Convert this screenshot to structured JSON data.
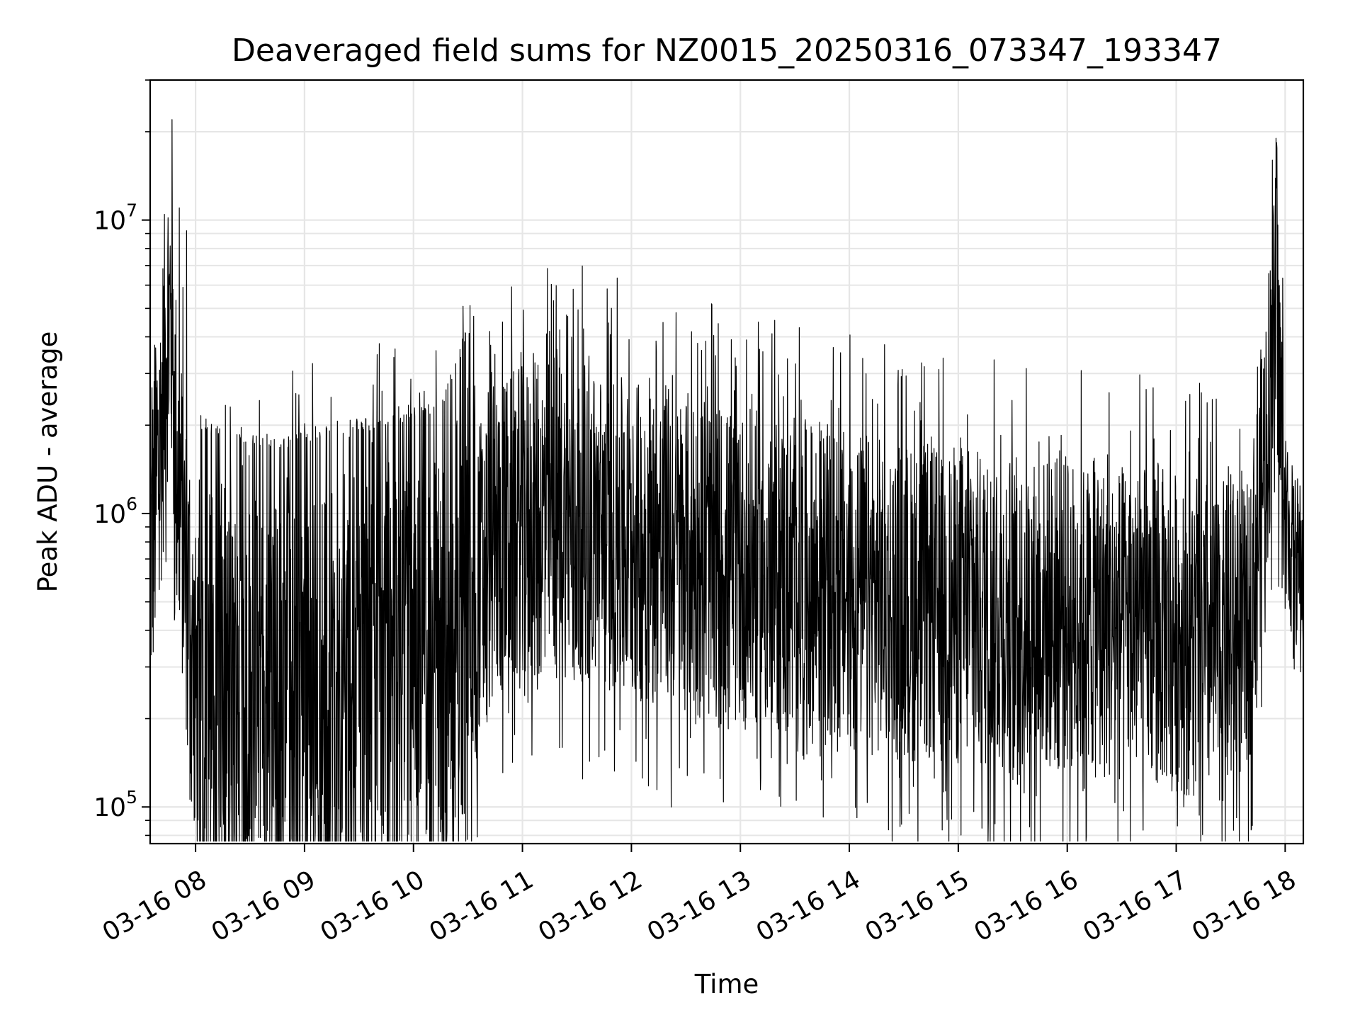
{
  "chart_data": {
    "type": "line",
    "title": "Deaveraged field sums for NZ0015_20250316_073347_193347",
    "xlabel": "Time",
    "ylabel": "Peak ADU - average",
    "yscale": "log",
    "ylim": [
      75000,
      30000000
    ],
    "xlim": [
      "2025-03-16T07:35:00",
      "2025-03-16T18:10:00"
    ],
    "grid": true,
    "line_color": "#000000",
    "x_ticks": [
      "03-16 08",
      "03-16 09",
      "03-16 10",
      "03-16 11",
      "03-16 12",
      "03-16 13",
      "03-16 14",
      "03-16 15",
      "03-16 16",
      "03-16 17",
      "03-16 18"
    ],
    "y_ticks": [
      {
        "base": "10",
        "exp": "5",
        "value": 100000
      },
      {
        "base": "10",
        "exp": "6",
        "value": 1000000
      },
      {
        "base": "10",
        "exp": "7",
        "value": 10000000
      }
    ],
    "series": [
      {
        "x": [
          "2025-03-16T07:35:00",
          "2025-03-16T07:40:00",
          "2025-03-16T07:45:00",
          "2025-03-16T07:50:00",
          "2025-03-16T07:55:00",
          "2025-03-16T08:00:00",
          "2025-03-16T08:10:00",
          "2025-03-16T08:20:00",
          "2025-03-16T08:30:00",
          "2025-03-16T08:40:00",
          "2025-03-16T08:50:00",
          "2025-03-16T09:00:00",
          "2025-03-16T09:15:00",
          "2025-03-16T09:30:00",
          "2025-03-16T09:45:00",
          "2025-03-16T10:00:00",
          "2025-03-16T10:15:00",
          "2025-03-16T10:30:00",
          "2025-03-16T10:45:00",
          "2025-03-16T11:00:00",
          "2025-03-16T11:20:00",
          "2025-03-16T11:40:00",
          "2025-03-16T12:00:00",
          "2025-03-16T12:20:00",
          "2025-03-16T12:40:00",
          "2025-03-16T13:00:00",
          "2025-03-16T13:30:00",
          "2025-03-16T14:00:00",
          "2025-03-16T14:30:00",
          "2025-03-16T15:00:00",
          "2025-03-16T15:30:00",
          "2025-03-16T16:00:00",
          "2025-03-16T16:30:00",
          "2025-03-16T17:00:00",
          "2025-03-16T17:20:00",
          "2025-03-16T17:40:00",
          "2025-03-16T17:50:00",
          "2025-03-16T17:55:00",
          "2025-03-16T18:00:00",
          "2025-03-16T18:05:00",
          "2025-03-16T18:10:00"
        ],
        "values": [
          700000,
          1500000,
          5000000,
          1500000,
          600000,
          250000,
          230000,
          220000,
          220000,
          210000,
          210000,
          220000,
          230000,
          240000,
          240000,
          250000,
          280000,
          500000,
          800000,
          900000,
          1000000,
          900000,
          800000,
          800000,
          700000,
          650000,
          600000,
          550000,
          500000,
          480000,
          450000,
          450000,
          420000,
          400000,
          350000,
          400000,
          2000000,
          5000000,
          900000,
          700000,
          650000
        ]
      }
    ],
    "noteworthy_peaks": [
      {
        "x": "2025-03-16T07:47:00",
        "value": 22000000
      },
      {
        "x": "2025-03-16T07:51:00",
        "value": 11000000
      },
      {
        "x": "2025-03-16T07:55:00",
        "value": 9200000
      },
      {
        "x": "2025-03-16T11:25:00",
        "value": 4700000
      },
      {
        "x": "2025-03-16T17:55:00",
        "value": 19000000
      },
      {
        "x": "2025-03-16T17:53:00",
        "value": 16000000
      }
    ],
    "noteworthy_minima": [
      {
        "x": "2025-03-16T12:22:00",
        "value": 100000
      },
      {
        "x": "2025-03-16T14:33:00",
        "value": 95000
      },
      {
        "x": "2025-03-16T16:31:00",
        "value": 97000
      }
    ]
  }
}
